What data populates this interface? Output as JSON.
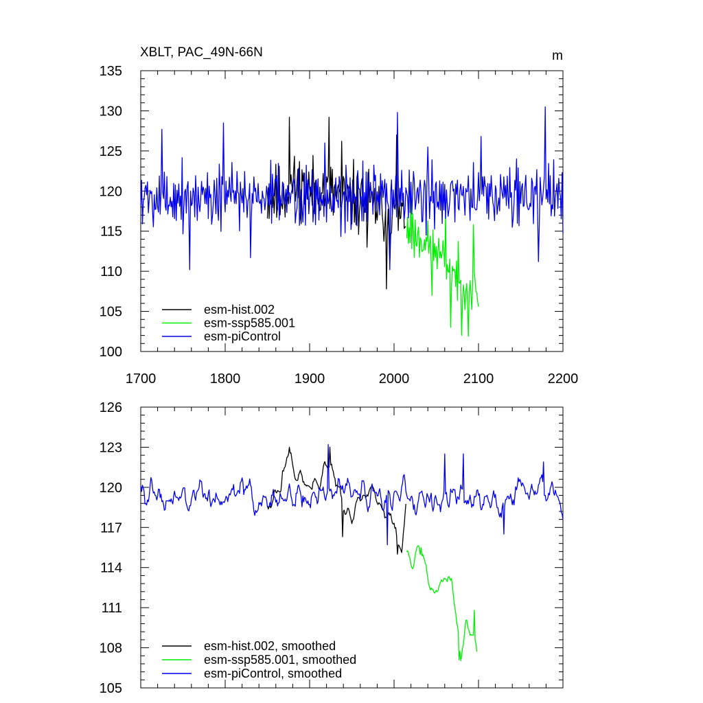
{
  "colors": {
    "hist": "#000000",
    "ssp": "#00ee00",
    "pic": "#0000ee",
    "axis": "#000000"
  },
  "chart_data": [
    {
      "type": "line",
      "title": "XBLT, PAC_49N-66N",
      "units": "m",
      "xlabel": "",
      "ylabel": "",
      "xlim": [
        1700,
        2200
      ],
      "ylim": [
        100,
        135
      ],
      "xticks": [
        1700,
        1800,
        1900,
        2000,
        2100,
        2200
      ],
      "xtick_labels": [
        "1700",
        "1800",
        "1900",
        "2000",
        "2100",
        "2200"
      ],
      "yticks": [
        100,
        105,
        110,
        115,
        120,
        125,
        130,
        135
      ],
      "ytick_labels": [
        "100",
        "105",
        "110",
        "115",
        "120",
        "125",
        "130",
        "135"
      ],
      "legend_position": "bottom-left",
      "series": [
        {
          "name": "esm-hist.002",
          "color": "hist",
          "mode": "noisy",
          "knots_x": [
            1850,
            1870,
            1880,
            1900,
            1920,
            1940,
            1960,
            1980,
            1990,
            2000,
            2014
          ],
          "knots_y": [
            119,
            119.5,
            121,
            120,
            120,
            119.5,
            119,
            118,
            117,
            117,
            117
          ],
          "amp": 3.4,
          "seed": 11,
          "peaks": [
            [
              1876,
              129.2
            ],
            [
              1923,
              129.2
            ],
            [
              1938,
              126.2
            ],
            [
              2003,
              127
            ],
            [
              1991,
              107.8
            ],
            [
              1995,
              110.8
            ],
            [
              1968,
              113
            ]
          ]
        },
        {
          "name": "esm-ssp585.001",
          "color": "ssp",
          "mode": "noisy",
          "knots_x": [
            2015,
            2030,
            2040,
            2050,
            2060,
            2070,
            2080,
            2090,
            2100
          ],
          "knots_y": [
            115,
            114,
            113.5,
            112.5,
            111.5,
            110,
            108.5,
            108,
            107
          ],
          "amp": 2.4,
          "seed": 23,
          "peaks": [
            [
              2020,
              121
            ],
            [
              2067,
              103
            ],
            [
              2080,
              102
            ],
            [
              2088,
              101.9
            ],
            [
              2094,
              115.8
            ],
            [
              2061,
              117.2
            ],
            [
              2045,
              107
            ]
          ]
        },
        {
          "name": "esm-piControl",
          "color": "pic",
          "mode": "noisy",
          "knots_x": [
            1700,
            2200
          ],
          "knots_y": [
            119.3,
            119.3
          ],
          "amp": 3.4,
          "seed": 5,
          "peaks": [
            [
              1725,
              127.7
            ],
            [
              1758,
              110.2
            ],
            [
              1798,
              128.5
            ],
            [
              1830,
              111.7
            ],
            [
              1918,
              126
            ],
            [
              2004,
              129.8
            ],
            [
              2179,
              130.5
            ],
            [
              2171,
              111.2
            ],
            [
              2040,
              125.5
            ],
            [
              1995,
              110.2
            ],
            [
              2145,
              124
            ],
            [
              2103,
              126.8
            ]
          ]
        }
      ]
    },
    {
      "type": "line",
      "title": "",
      "units": "",
      "xlim": [
        1700,
        2200
      ],
      "ylim": [
        105,
        126
      ],
      "xticks": [
        1700,
        1800,
        1900,
        2000,
        2100,
        2200
      ],
      "yticks": [
        105,
        108,
        111,
        114,
        117,
        120,
        123,
        126
      ],
      "ytick_labels": [
        "105",
        "108",
        "111",
        "114",
        "117",
        "120",
        "123",
        "126"
      ],
      "legend_position": "bottom-left",
      "series": [
        {
          "name": "esm-hist.002, smoothed",
          "color": "hist",
          "mode": "smooth",
          "knots_x": [
            1850,
            1865,
            1875,
            1885,
            1900,
            1910,
            1925,
            1940,
            1950,
            1960,
            1970,
            1980,
            1990,
            2000,
            2005,
            2010,
            2014
          ],
          "knots_y": [
            119,
            119.5,
            122.5,
            121,
            120,
            120.5,
            121.5,
            118.5,
            117.5,
            119,
            120.5,
            119.5,
            118,
            117.5,
            115.5,
            116.5,
            118.7
          ],
          "amp": 0.7,
          "seed": 31,
          "peaks": [
            [
              1876,
              123
            ],
            [
              1924,
              123
            ],
            [
              1939,
              116.3
            ],
            [
              2004,
              115
            ]
          ]
        },
        {
          "name": "esm-ssp585.001, smoothed",
          "color": "ssp",
          "mode": "smooth",
          "knots_x": [
            2015,
            2022,
            2028,
            2035,
            2042,
            2048,
            2055,
            2062,
            2068,
            2074,
            2079,
            2085,
            2092,
            2098
          ],
          "knots_y": [
            115,
            114.3,
            115,
            114.5,
            112.8,
            112,
            112.5,
            113.5,
            113,
            109.5,
            107.3,
            109.5,
            109.5,
            108
          ],
          "amp": 0.55,
          "seed": 41,
          "peaks": [
            [
              2032,
              115.5
            ],
            [
              2077,
              107.1
            ],
            [
              2095,
              110.8
            ]
          ]
        },
        {
          "name": "esm-piControl, smoothed",
          "color": "pic",
          "mode": "smooth",
          "knots_x": [
            1700,
            1750,
            1800,
            1850,
            1900,
            1950,
            2000,
            2050,
            2100,
            2150,
            2200
          ],
          "knots_y": [
            119.2,
            119.3,
            119.2,
            119.3,
            119.4,
            119.6,
            119.4,
            119.2,
            119.3,
            119.4,
            119.5
          ],
          "amp": 1.25,
          "seed": 7,
          "peaks": [
            [
              1922,
              123.2
            ],
            [
              1992,
              115.7
            ],
            [
              2060,
              122.5
            ],
            [
              2082,
              122.5
            ],
            [
              2130,
              116.5
            ],
            [
              2177,
              121.9
            ]
          ]
        }
      ]
    }
  ]
}
